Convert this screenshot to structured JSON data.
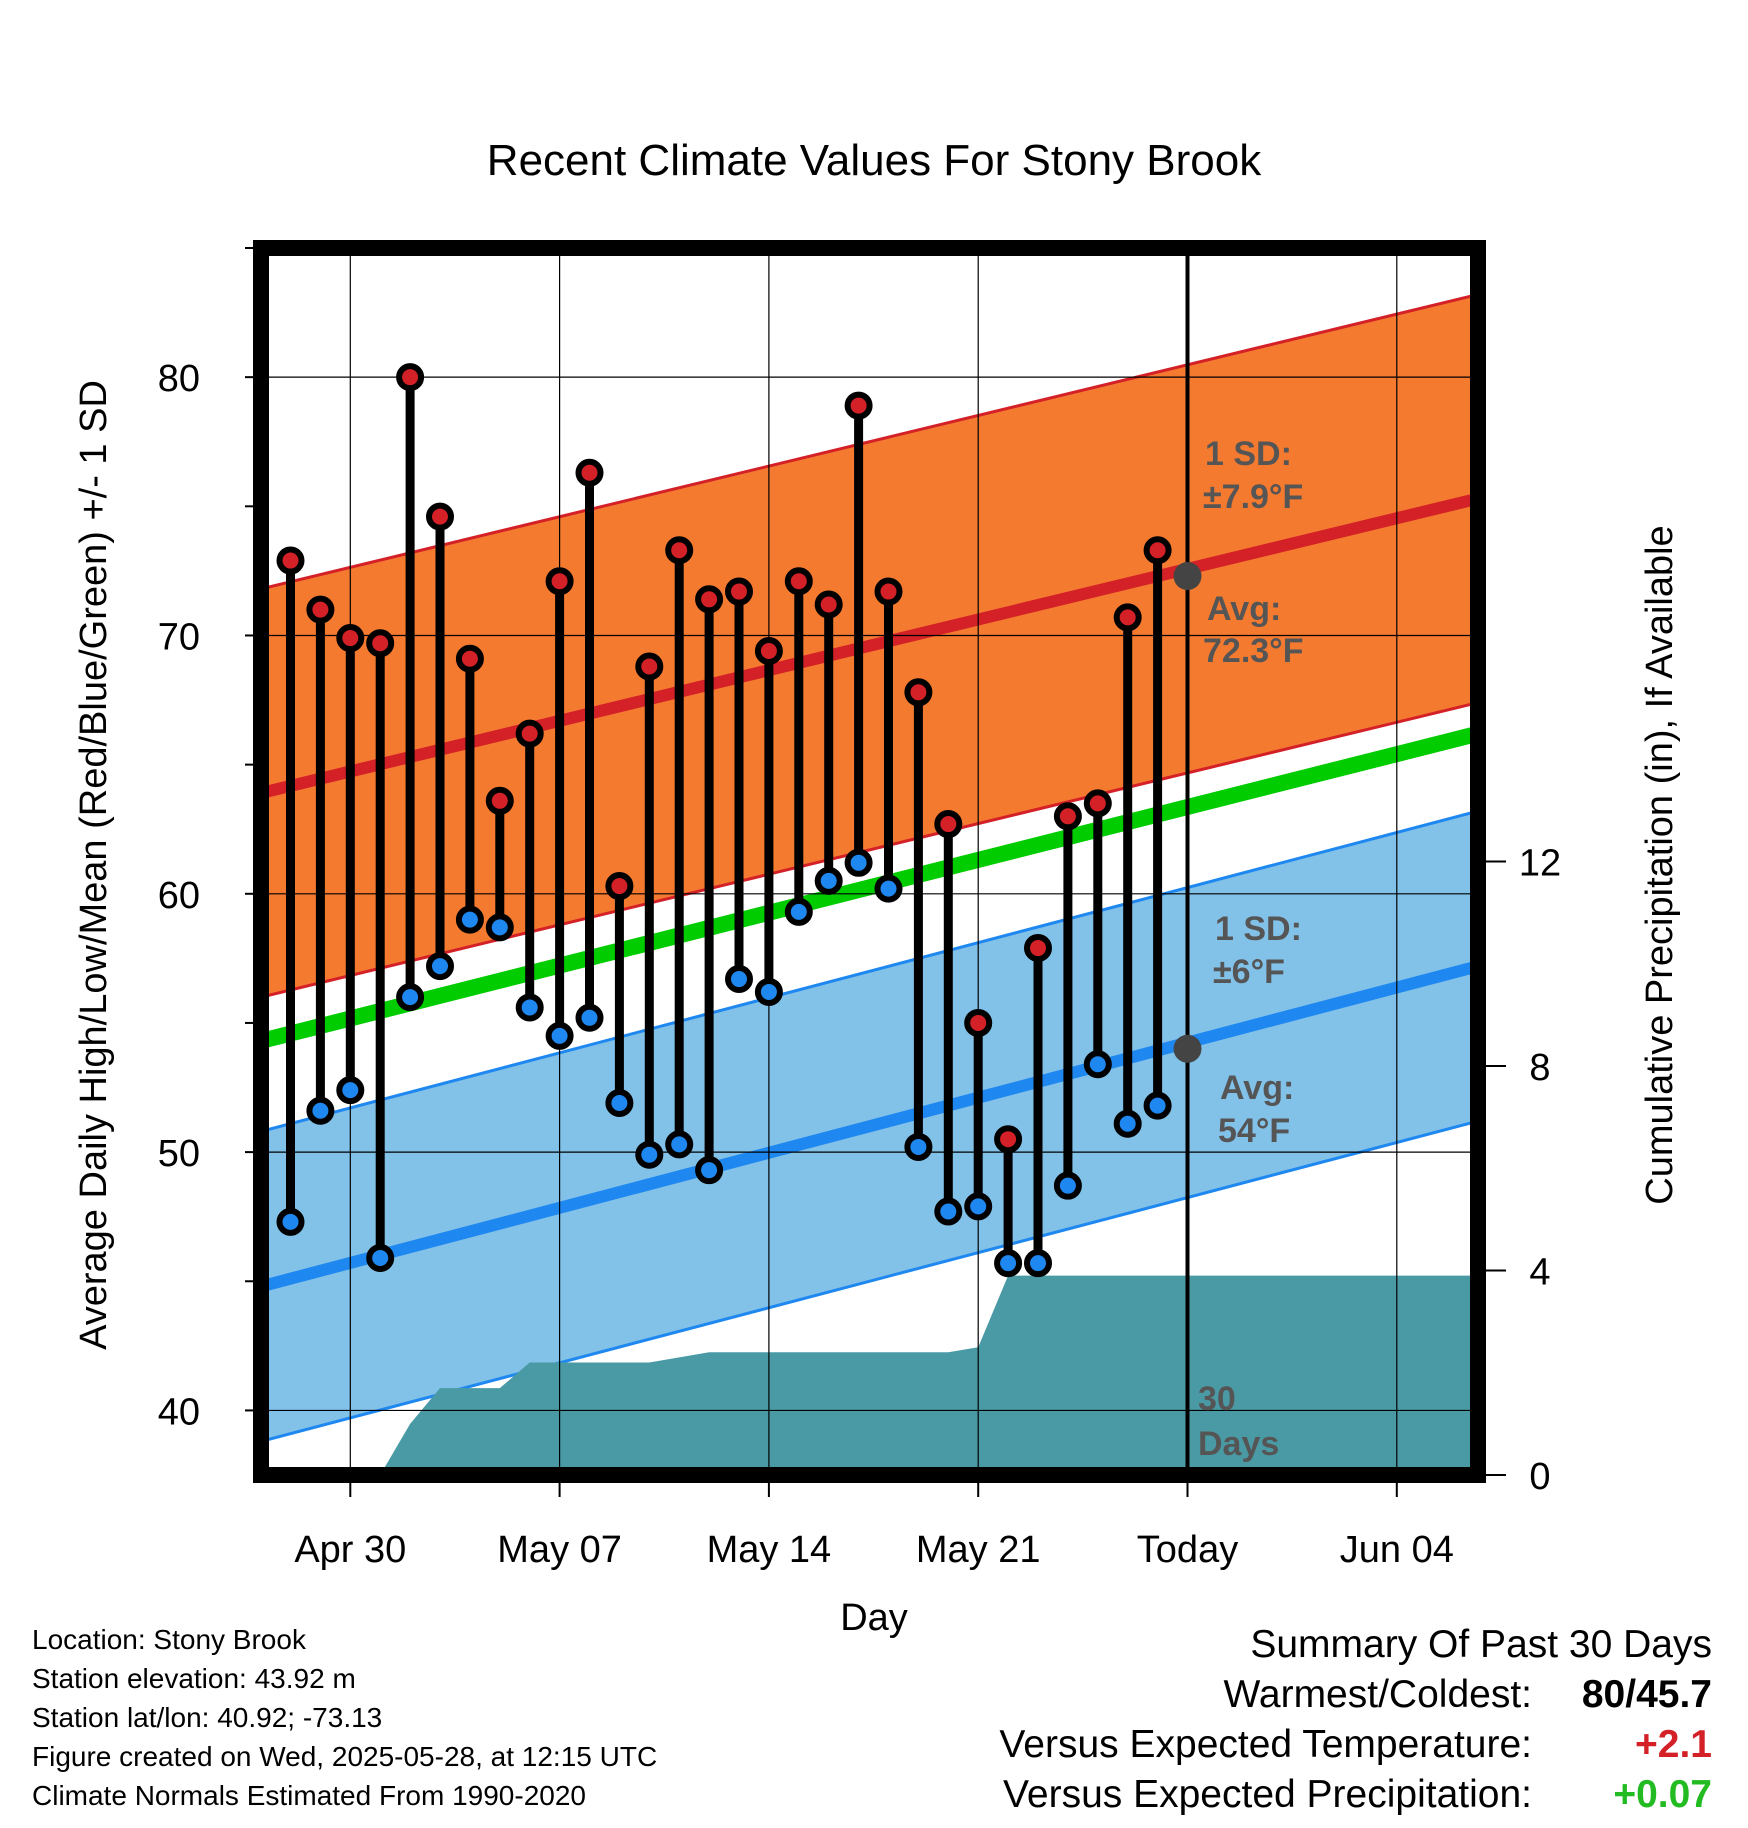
{
  "chart_data": {
    "type": "line",
    "title": "Recent Climate Values For Stony Brook",
    "xlabel": "Day",
    "ylabel_left": "Average Daily High/Low/Mean (Red/Blue/Green) +/- 1 SD",
    "ylabel_right": "Cumulative Precipitation (in), If Available",
    "x_tick_labels": [
      "Apr 30",
      "May 07",
      "May 14",
      "May 21",
      "Today",
      "Jun 04"
    ],
    "y_ticks_left": [
      "40",
      "50",
      "60",
      "70",
      "80"
    ],
    "y_ticks_right": [
      "0",
      "4",
      "8",
      "12"
    ],
    "ylim_left": [
      37.5,
      85
    ],
    "ylim_right": [
      0,
      24
    ],
    "days": [
      "Apr 28",
      "Apr 29",
      "Apr 30",
      "May 01",
      "May 02",
      "May 03",
      "May 04",
      "May 05",
      "May 06",
      "May 07",
      "May 08",
      "May 09",
      "May 10",
      "May 11",
      "May 12",
      "May 13",
      "May 14",
      "May 15",
      "May 16",
      "May 17",
      "May 18",
      "May 19",
      "May 20",
      "May 21",
      "May 22",
      "May 23",
      "May 24",
      "May 25",
      "May 26",
      "May 27"
    ],
    "daily_high": [
      72.9,
      71.0,
      69.9,
      69.7,
      80.0,
      74.6,
      69.1,
      63.6,
      66.2,
      72.1,
      76.3,
      60.3,
      68.8,
      73.3,
      71.4,
      71.7,
      69.4,
      72.1,
      71.2,
      78.9,
      71.7,
      67.8,
      62.7,
      55.0,
      50.5,
      57.9,
      63.0,
      63.5,
      70.7,
      73.3
    ],
    "daily_low": [
      47.3,
      51.6,
      52.4,
      45.9,
      56.0,
      57.2,
      59.0,
      58.7,
      55.6,
      54.5,
      55.2,
      51.9,
      49.9,
      50.3,
      49.3,
      56.7,
      56.2,
      59.3,
      60.5,
      61.2,
      60.2,
      50.2,
      47.7,
      47.9,
      45.7,
      45.7,
      48.7,
      53.4,
      51.1,
      51.8
    ],
    "normal_high": {
      "start": 63.9,
      "end": 75.3,
      "sd": 7.9
    },
    "normal_low": {
      "start": 44.8,
      "end": 57.2,
      "sd": 6
    },
    "normal_mean": {
      "start": 54.3,
      "end": 66.2
    },
    "cumulative_precip": [
      [
        -1,
        0
      ],
      [
        3,
        0
      ],
      [
        4,
        1.0
      ],
      [
        5,
        1.7
      ],
      [
        7,
        1.7
      ],
      [
        8,
        2.2
      ],
      [
        12,
        2.2
      ],
      [
        14,
        2.4
      ],
      [
        22,
        2.4
      ],
      [
        23,
        2.5
      ],
      [
        24,
        3.9
      ],
      [
        25,
        3.9
      ],
      [
        40,
        3.9
      ]
    ],
    "series": [
      {
        "name": "Avg High",
        "color": "#d42027"
      },
      {
        "name": "Avg Low",
        "color": "#1e88f0"
      },
      {
        "name": "Avg Mean",
        "color": "#00cc00"
      }
    ],
    "annotations": {
      "high_sd_label": "1 SD:",
      "high_sd_value": "±7.9°F",
      "high_avg_label": "Avg:",
      "high_avg_value": "72.3°F",
      "low_sd_label": "1 SD:",
      "low_sd_value": "±6°F",
      "low_avg_label": "Avg:",
      "low_avg_value": "54°F",
      "today_days_line1": "30",
      "today_days_line2": "Days"
    },
    "today_high_avg": 72.3,
    "today_low_avg": 54,
    "colors": {
      "high_band": "#f47a30",
      "high_line": "#d42027",
      "low_band": "#82c1e8",
      "low_line": "#1e88f0",
      "mean_line": "#00cc00",
      "precip": "#4a9aa5",
      "marker_high": "#d42027",
      "marker_low": "#1e88f0"
    },
    "grid": true
  },
  "info": {
    "location": "Location: Stony Brook",
    "elevation": "Station elevation: 43.92 m",
    "latlon": "Station lat/lon: 40.92; -73.13",
    "created": "Figure created on Wed, 2025-05-28, at 12:15 UTC",
    "normals": "Climate Normals Estimated From 1990-2020"
  },
  "summary": {
    "title": "Summary Of Past 30 Days",
    "warm_cold_label": "Warmest/Coldest:",
    "warm_value": "80",
    "cold_value": "/45.7",
    "temp_label": "Versus Expected Temperature:",
    "temp_value": "+2.1",
    "temp_color": "#d42027",
    "precip_label": "Versus Expected Precipitation:",
    "precip_value": "+0.07",
    "precip_color": "#22bb22"
  }
}
